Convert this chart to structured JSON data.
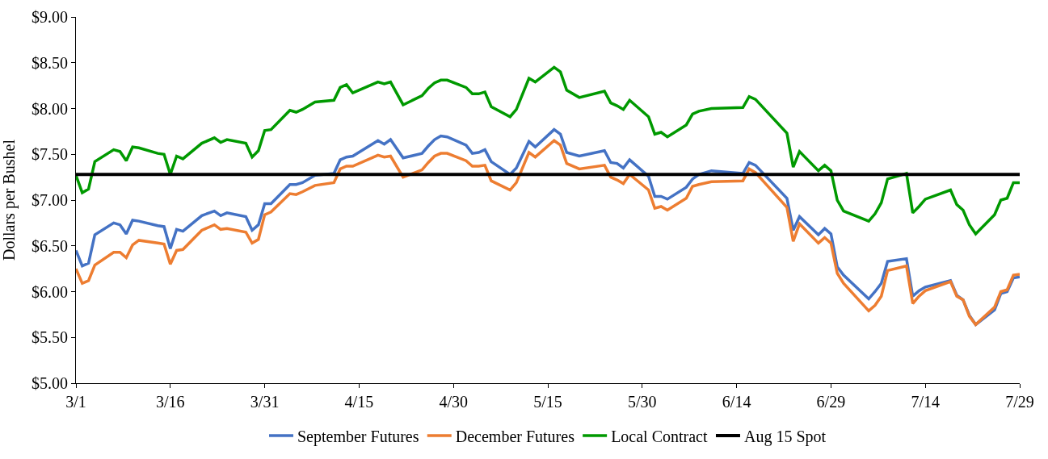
{
  "chart_data": {
    "type": "line",
    "ylabel": "Dollars per Bushel",
    "x": [
      "--03-01",
      "--03-02",
      "--03-03",
      "--03-04",
      "--03-07",
      "--03-08",
      "--03-09",
      "--03-10",
      "--03-11",
      "--03-14",
      "--03-15",
      "--03-16",
      "--03-17",
      "--03-18",
      "--03-21",
      "--03-23",
      "--03-24",
      "--03-25",
      "--03-28",
      "--03-29",
      "--03-30",
      "--03-31",
      "--04-01",
      "--04-04",
      "--04-05",
      "--04-06",
      "--04-08",
      "--04-11",
      "--04-12",
      "--04-13",
      "--04-14",
      "--04-18",
      "--04-19",
      "--04-20",
      "--04-22",
      "--04-25",
      "--04-26",
      "--04-27",
      "--04-28",
      "--04-29",
      "--05-02",
      "--05-03",
      "--05-04",
      "--05-05",
      "--05-06",
      "--05-09",
      "--05-10",
      "--05-12",
      "--05-13",
      "--05-16",
      "--05-17",
      "--05-18",
      "--05-20",
      "--05-24",
      "--05-25",
      "--05-26",
      "--05-27",
      "--05-28",
      "--05-31",
      "--06-01",
      "--06-02",
      "--06-03",
      "--06-06",
      "--06-07",
      "--06-08",
      "--06-10",
      "--06-15",
      "--06-16",
      "--06-17",
      "--06-22",
      "--06-23",
      "--06-24",
      "--06-27",
      "--06-28",
      "--06-29",
      "--06-30",
      "--07-01",
      "--07-05",
      "--07-06",
      "--07-07",
      "--07-08",
      "--07-11",
      "--07-12",
      "--07-13",
      "--07-14",
      "--07-18",
      "--07-19",
      "--07-20",
      "--07-21",
      "--07-22",
      "--07-25",
      "--07-26",
      "--07-27",
      "--07-28",
      "--07-29"
    ],
    "series": [
      {
        "name": "September Futures",
        "color": "#4472c4",
        "values": [
          6.45,
          6.28,
          6.31,
          6.62,
          6.75,
          6.73,
          6.63,
          6.78,
          6.77,
          6.72,
          6.71,
          6.47,
          6.68,
          6.66,
          6.83,
          6.88,
          6.83,
          6.86,
          6.82,
          6.67,
          6.73,
          6.96,
          6.96,
          7.17,
          7.17,
          7.19,
          7.27,
          7.29,
          7.44,
          7.47,
          7.48,
          7.65,
          7.61,
          7.66,
          7.46,
          7.51,
          7.59,
          7.66,
          7.7,
          7.69,
          7.6,
          7.51,
          7.52,
          7.55,
          7.42,
          7.28,
          7.35,
          7.64,
          7.58,
          7.77,
          7.72,
          7.52,
          7.48,
          7.54,
          7.41,
          7.4,
          7.35,
          7.44,
          7.26,
          7.04,
          7.04,
          7.01,
          7.14,
          7.23,
          7.28,
          7.32,
          7.29,
          7.41,
          7.38,
          7.02,
          6.67,
          6.82,
          6.62,
          6.69,
          6.63,
          6.27,
          6.18,
          5.92,
          6.0,
          6.09,
          6.33,
          6.36,
          5.95,
          6.01,
          6.05,
          6.12,
          5.96,
          5.91,
          5.74,
          5.64,
          5.8,
          5.98,
          6.0,
          6.15,
          6.16
        ]
      },
      {
        "name": "December Futures",
        "color": "#ed7d31",
        "values": [
          6.25,
          6.09,
          6.12,
          6.29,
          6.43,
          6.43,
          6.37,
          6.51,
          6.56,
          6.53,
          6.52,
          6.3,
          6.45,
          6.46,
          6.67,
          6.73,
          6.68,
          6.69,
          6.65,
          6.53,
          6.57,
          6.84,
          6.87,
          7.07,
          7.06,
          7.09,
          7.16,
          7.19,
          7.34,
          7.37,
          7.37,
          7.49,
          7.47,
          7.48,
          7.25,
          7.33,
          7.41,
          7.48,
          7.51,
          7.51,
          7.43,
          7.37,
          7.37,
          7.38,
          7.21,
          7.11,
          7.19,
          7.52,
          7.47,
          7.65,
          7.6,
          7.4,
          7.34,
          7.38,
          7.25,
          7.22,
          7.18,
          7.28,
          7.11,
          6.91,
          6.93,
          6.89,
          7.02,
          7.15,
          7.17,
          7.2,
          7.21,
          7.34,
          7.3,
          6.92,
          6.55,
          6.74,
          6.53,
          6.59,
          6.53,
          6.2,
          6.09,
          5.79,
          5.85,
          5.95,
          6.23,
          6.28,
          5.87,
          5.95,
          6.01,
          6.11,
          5.95,
          5.91,
          5.73,
          5.64,
          5.83,
          6.0,
          6.02,
          6.18,
          6.19
        ]
      },
      {
        "name": "Local Contract",
        "color": "#009900",
        "values": [
          7.27,
          7.08,
          7.12,
          7.42,
          7.55,
          7.53,
          7.43,
          7.58,
          7.57,
          7.51,
          7.5,
          7.28,
          7.48,
          7.45,
          7.62,
          7.68,
          7.63,
          7.66,
          7.62,
          7.47,
          7.54,
          7.76,
          7.77,
          7.98,
          7.96,
          7.99,
          8.07,
          8.09,
          8.23,
          8.26,
          8.17,
          8.29,
          8.27,
          8.29,
          8.04,
          8.14,
          8.22,
          8.28,
          8.31,
          8.31,
          8.23,
          8.16,
          8.16,
          8.18,
          8.02,
          7.91,
          7.99,
          8.33,
          8.29,
          8.45,
          8.4,
          8.2,
          8.12,
          8.19,
          8.06,
          8.03,
          7.99,
          8.09,
          7.91,
          7.72,
          7.74,
          7.69,
          7.82,
          7.94,
          7.97,
          8.0,
          8.01,
          8.13,
          8.1,
          7.73,
          7.36,
          7.53,
          7.32,
          7.38,
          7.32,
          7.0,
          6.88,
          6.77,
          6.85,
          6.97,
          7.23,
          7.29,
          6.86,
          6.93,
          7.01,
          7.11,
          6.95,
          6.89,
          6.73,
          6.63,
          6.84,
          7.0,
          7.02,
          7.19,
          7.19
        ]
      }
    ],
    "ref_lines": [
      {
        "axis": "y",
        "value": 7.28,
        "label": "Aug 15 Spot",
        "color": "#000000"
      }
    ],
    "xlim": [
      "--03-01",
      "--07-29"
    ],
    "xticks": [
      {
        "value": "--03-01",
        "label": "3/1"
      },
      {
        "value": "--03-16",
        "label": "3/16"
      },
      {
        "value": "--03-31",
        "label": "3/31"
      },
      {
        "value": "--04-15",
        "label": "4/15"
      },
      {
        "value": "--04-30",
        "label": "4/30"
      },
      {
        "value": "--05-15",
        "label": "5/15"
      },
      {
        "value": "--05-30",
        "label": "5/30"
      },
      {
        "value": "--06-14",
        "label": "6/14"
      },
      {
        "value": "--06-29",
        "label": "6/29"
      },
      {
        "value": "--07-14",
        "label": "7/14"
      },
      {
        "value": "--07-29",
        "label": "7/29"
      }
    ],
    "ylim": [
      5.0,
      9.0
    ],
    "yticks": [
      {
        "value": 5.0,
        "label": "$5.00"
      },
      {
        "value": 5.5,
        "label": "$5.50"
      },
      {
        "value": 6.0,
        "label": "$6.00"
      },
      {
        "value": 6.5,
        "label": "$6.50"
      },
      {
        "value": 7.0,
        "label": "$7.00"
      },
      {
        "value": 7.5,
        "label": "$7.50"
      },
      {
        "value": 8.0,
        "label": "$8.00"
      },
      {
        "value": 8.5,
        "label": "$8.50"
      },
      {
        "value": 9.0,
        "label": "$9.00"
      }
    ],
    "legend": "bottom",
    "line_style": "solid",
    "marker": "none"
  }
}
